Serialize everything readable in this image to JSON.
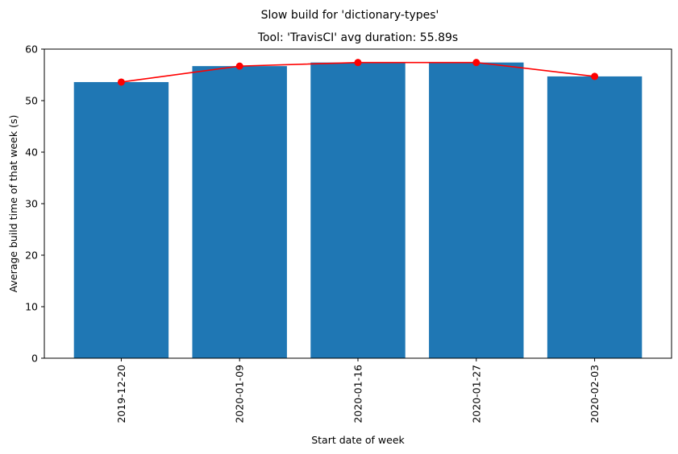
{
  "chart_data": {
    "type": "bar",
    "suptitle": "Slow build for 'dictionary-types'",
    "title": "Tool: 'TravisCI' avg duration: 55.89s",
    "xlabel": "Start date of week",
    "ylabel": "Average build time of that week (s)",
    "categories": [
      "2019-12-20",
      "2020-01-09",
      "2020-01-16",
      "2020-01-27",
      "2020-02-03"
    ],
    "values": [
      53.6,
      56.7,
      57.4,
      57.4,
      54.7
    ],
    "line_values": [
      53.6,
      56.7,
      57.4,
      57.4,
      54.7
    ],
    "ylim": [
      0,
      60
    ],
    "yticks": [
      0,
      10,
      20,
      30,
      40,
      50,
      60
    ],
    "bar_color": "#1f77b4",
    "line_color": "#ff0000",
    "grid": false,
    "legend": "none"
  }
}
